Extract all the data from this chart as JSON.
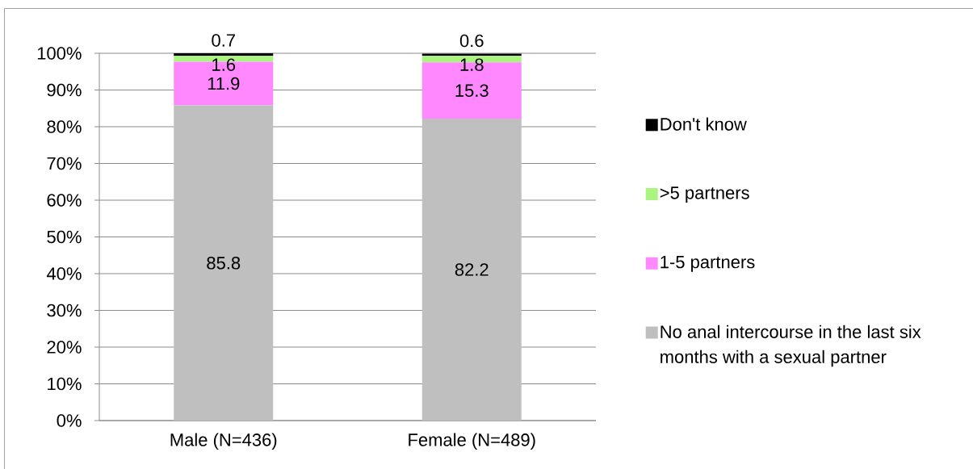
{
  "chart_data": {
    "type": "bar",
    "stacked": true,
    "categories": [
      "Male (N=436)",
      "Female (N=489)"
    ],
    "series": [
      {
        "name": "No anal intercourse in the last six months with a sexual partner",
        "color": "#bfbfbf",
        "values": [
          85.8,
          82.2
        ]
      },
      {
        "name": "1-5 partners",
        "color": "#ff88ff",
        "values": [
          11.9,
          15.3
        ]
      },
      {
        "name": ">5 partners",
        "color": "#a9f57f",
        "values": [
          1.6,
          1.8
        ]
      },
      {
        "name": "Don't know",
        "color": "#000000",
        "values": [
          0.7,
          0.6
        ]
      }
    ],
    "ylim": [
      0,
      100
    ],
    "yticks": [
      {
        "value": 0,
        "label": "0%"
      },
      {
        "value": 10,
        "label": "10%"
      },
      {
        "value": 20,
        "label": "20%"
      },
      {
        "value": 30,
        "label": "30%"
      },
      {
        "value": 40,
        "label": "40%"
      },
      {
        "value": 50,
        "label": "50%"
      },
      {
        "value": 60,
        "label": "60%"
      },
      {
        "value": 70,
        "label": "70%"
      },
      {
        "value": 80,
        "label": "80%"
      },
      {
        "value": 90,
        "label": "90%"
      },
      {
        "value": 100,
        "label": "100%"
      }
    ],
    "grid": "y",
    "legend": "right",
    "data_labels": true
  }
}
